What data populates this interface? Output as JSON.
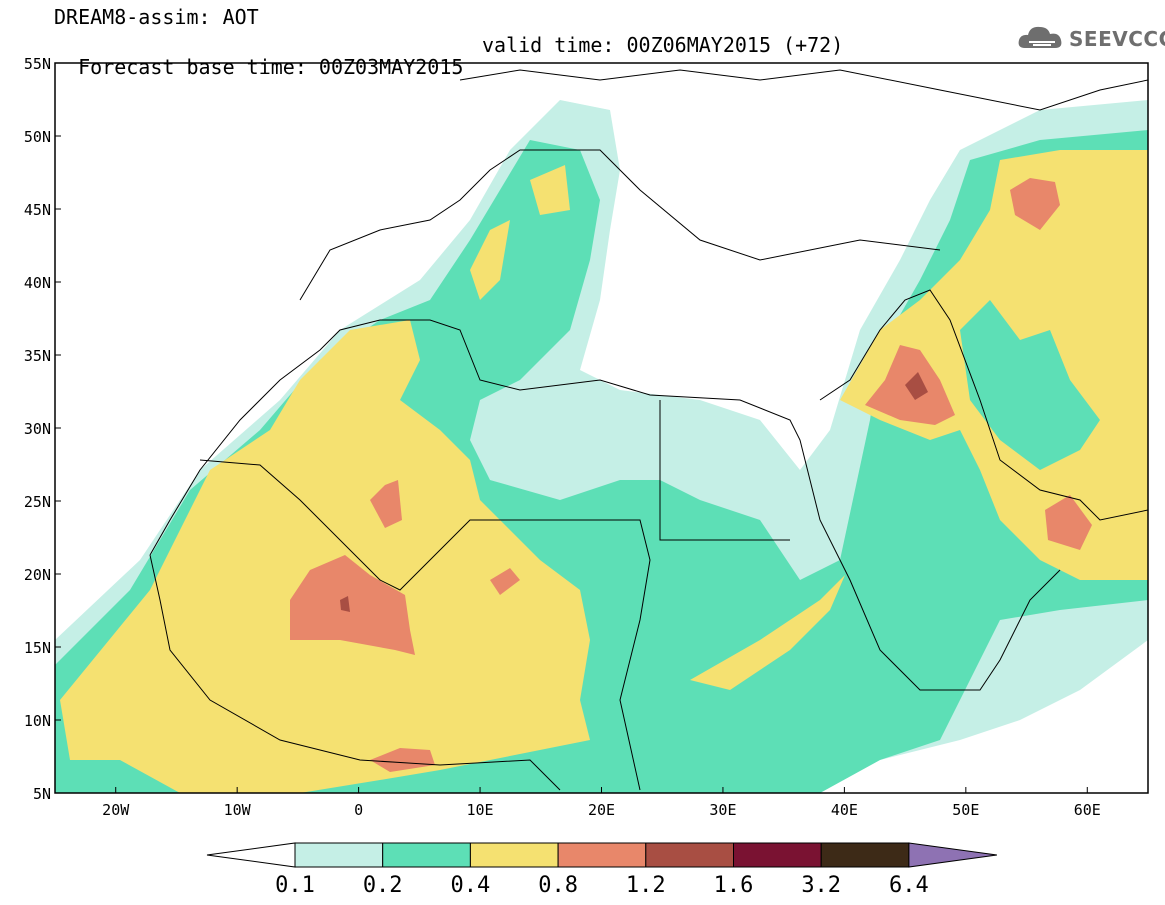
{
  "header": {
    "title_line1": "DREAM8-assim: AOT",
    "base_time": "Forecast base time: 00Z03MAY2015",
    "valid_time": "valid time: 00Z06MAY2015 (+72)"
  },
  "logo": {
    "text": "SEEVCCC",
    "icon": "cloud-icon"
  },
  "map": {
    "projection": "lat-lon",
    "lon_range": [
      -25,
      65
    ],
    "lat_range": [
      5,
      55
    ],
    "lat_ticks": [
      "5N",
      "10N",
      "15N",
      "20N",
      "25N",
      "30N",
      "35N",
      "40N",
      "45N",
      "50N",
      "55N"
    ],
    "lon_ticks": [
      "20W",
      "10W",
      "0",
      "10E",
      "20E",
      "30E",
      "40E",
      "50E",
      "60E"
    ],
    "variable": "Aerosol Optical Thickness"
  },
  "colorbar": {
    "labels": [
      "0.1",
      "0.2",
      "0.4",
      "0.8",
      "1.2",
      "1.6",
      "3.2",
      "6.4"
    ],
    "colors": [
      "#ffffff",
      "#c5efe6",
      "#5ddfb6",
      "#f5e171",
      "#e8876a",
      "#a84e43",
      "#7a1232",
      "#3d2a17",
      "#8e72b3"
    ]
  }
}
